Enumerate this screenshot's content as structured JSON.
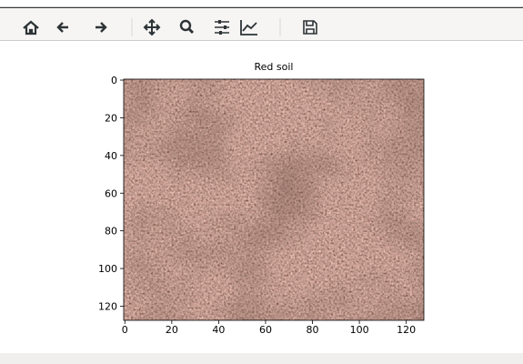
{
  "chart_data": {
    "type": "image",
    "title": "Red soil",
    "xlim": [
      -0.5,
      127.5
    ],
    "ylim": [
      127.5,
      -0.5
    ],
    "xticks": [
      0,
      20,
      40,
      60,
      80,
      100,
      120
    ],
    "yticks": [
      0,
      20,
      40,
      60,
      80,
      100,
      120
    ]
  }
}
